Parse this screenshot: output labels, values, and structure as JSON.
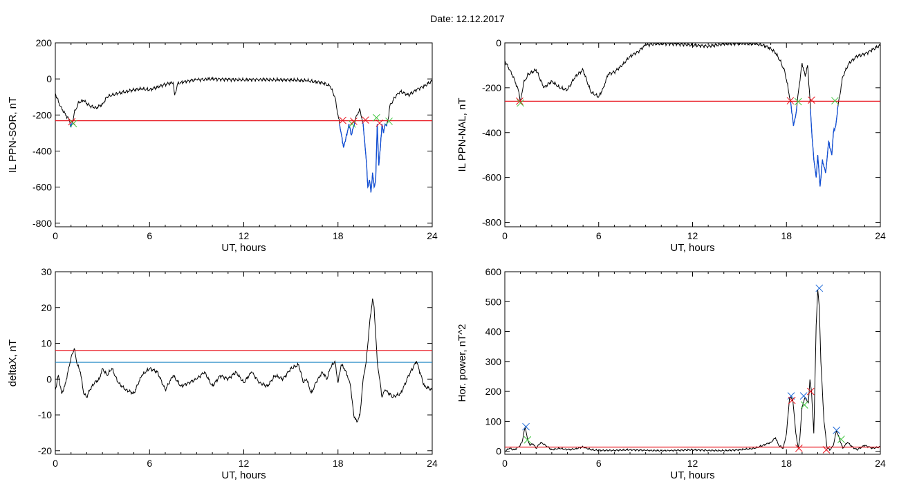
{
  "title": "Date:  12.12.2017",
  "colors": {
    "series": "#000000",
    "threshold": "#e8121c",
    "level2": "#1f86c4",
    "highlight": "#1250d8",
    "mark_red": "#e8121c",
    "mark_green": "#3cc43c",
    "mark_blue": "#1f6ad8"
  },
  "chart_data": [
    {
      "id": "sor",
      "type": "line",
      "xlabel": "UT, hours",
      "ylabel": "IL PPN-SOR, nT",
      "xlim": [
        0,
        24
      ],
      "ylim": [
        -820,
        200
      ],
      "xticks": [
        0,
        6,
        12,
        18,
        24
      ],
      "yticks": [
        200,
        0,
        -200,
        -400,
        -600,
        -800
      ],
      "threshold": -232,
      "x": [
        0,
        0.3,
        0.6,
        0.9,
        1.0,
        1.1,
        1.2,
        1.3,
        1.5,
        1.8,
        2.2,
        2.6,
        3.0,
        3.3,
        3.6,
        4.0,
        4.5,
        5.0,
        5.5,
        6.0,
        6.5,
        7.0,
        7.5,
        7.6,
        7.8,
        8.0,
        8.5,
        9.0,
        9.5,
        10.0,
        11.0,
        12.0,
        13.0,
        14.0,
        15.0,
        16.0,
        17.0,
        17.5,
        17.8,
        18.0,
        18.2,
        18.35,
        18.5,
        18.7,
        18.85,
        19.0,
        19.2,
        19.4,
        19.6,
        19.7,
        19.8,
        19.9,
        20.0,
        20.1,
        20.2,
        20.3,
        20.4,
        20.5,
        20.6,
        20.7,
        20.8,
        20.9,
        21.0,
        21.1,
        21.2,
        21.3,
        21.5,
        21.8,
        22.0,
        22.5,
        23.0,
        23.5,
        24.0
      ],
      "values": [
        -80,
        -150,
        -190,
        -230,
        -265,
        -240,
        -190,
        -170,
        -130,
        -120,
        -150,
        -160,
        -140,
        -100,
        -90,
        -80,
        -70,
        -60,
        -55,
        -60,
        -45,
        -30,
        -20,
        -90,
        -25,
        -20,
        -10,
        -5,
        -2,
        0,
        -3,
        -5,
        -3,
        -5,
        -5,
        -10,
        -20,
        -40,
        -100,
        -200,
        -300,
        -380,
        -330,
        -250,
        -310,
        -260,
        -200,
        -170,
        -250,
        -350,
        -450,
        -600,
        -560,
        -630,
        -520,
        -600,
        -560,
        -250,
        -480,
        -380,
        -250,
        -300,
        -250,
        -260,
        -220,
        -150,
        -120,
        -80,
        -70,
        -90,
        -60,
        -40,
        -10
      ],
      "markers": [
        {
          "x": 1.05,
          "y": -237,
          "color": "red"
        },
        {
          "x": 1.15,
          "y": -248,
          "color": "green"
        },
        {
          "x": 18.3,
          "y": -230,
          "color": "red"
        },
        {
          "x": 18.9,
          "y": -250,
          "color": "green"
        },
        {
          "x": 19.0,
          "y": -235,
          "color": "red"
        },
        {
          "x": 19.75,
          "y": -228,
          "color": "red"
        },
        {
          "x": 20.45,
          "y": -215,
          "color": "green"
        },
        {
          "x": 20.65,
          "y": -245,
          "color": "red"
        },
        {
          "x": 21.25,
          "y": -235,
          "color": "green"
        }
      ]
    },
    {
      "id": "nal",
      "type": "line",
      "xlabel": "UT, hours",
      "ylabel": "IL PPN-NAL, nT",
      "xlim": [
        0,
        24
      ],
      "ylim": [
        -820,
        0
      ],
      "xticks": [
        0,
        6,
        12,
        18,
        24
      ],
      "yticks": [
        0,
        -200,
        -400,
        -600,
        -800
      ],
      "threshold": -260,
      "x": [
        0,
        0.3,
        0.6,
        0.9,
        1.0,
        1.2,
        1.5,
        2.0,
        2.5,
        3.0,
        3.5,
        4.0,
        4.5,
        5.0,
        5.5,
        6.0,
        6.3,
        6.6,
        7.0,
        7.5,
        8.0,
        8.5,
        9.0,
        9.5,
        10.0,
        11.0,
        12.0,
        13.0,
        14.0,
        15.0,
        16.0,
        16.5,
        17.0,
        17.3,
        17.6,
        17.9,
        18.1,
        18.3,
        18.45,
        18.6,
        18.8,
        19.0,
        19.2,
        19.35,
        19.5,
        19.6,
        19.75,
        19.9,
        20.0,
        20.15,
        20.3,
        20.5,
        20.7,
        20.9,
        21.0,
        21.15,
        21.3,
        21.6,
        22.0,
        22.5,
        23.0,
        23.5,
        24.0
      ],
      "values": [
        -80,
        -120,
        -160,
        -220,
        -262,
        -180,
        -140,
        -120,
        -200,
        -170,
        -200,
        -210,
        -150,
        -120,
        -220,
        -240,
        -200,
        -140,
        -130,
        -100,
        -60,
        -40,
        -10,
        -5,
        -3,
        -5,
        -10,
        -15,
        -5,
        -2,
        -5,
        -10,
        -25,
        -45,
        -80,
        -130,
        -200,
        -280,
        -370,
        -320,
        -200,
        -90,
        -150,
        -100,
        -250,
        -380,
        -520,
        -600,
        -500,
        -640,
        -520,
        -580,
        -440,
        -500,
        -400,
        -370,
        -280,
        -150,
        -90,
        -60,
        -50,
        -30,
        -10
      ],
      "markers": [
        {
          "x": 0.95,
          "y": -260,
          "color": "red"
        },
        {
          "x": 1.0,
          "y": -268,
          "color": "green"
        },
        {
          "x": 18.25,
          "y": -258,
          "color": "red"
        },
        {
          "x": 18.75,
          "y": -262,
          "color": "green"
        },
        {
          "x": 19.6,
          "y": -255,
          "color": "red"
        },
        {
          "x": 21.1,
          "y": -258,
          "color": "green"
        }
      ]
    },
    {
      "id": "deltax",
      "type": "line",
      "xlabel": "UT, hours",
      "ylabel": "deltaX, nT",
      "xlim": [
        0,
        24
      ],
      "ylim": [
        -21,
        30
      ],
      "xticks": [
        0,
        6,
        12,
        18,
        24
      ],
      "yticks": [
        30,
        20,
        10,
        0,
        -10,
        -20
      ],
      "threshold": 8,
      "level2": 4.7,
      "x": [
        0,
        0.2,
        0.4,
        0.6,
        0.8,
        1.0,
        1.2,
        1.4,
        1.6,
        1.8,
        2.0,
        2.2,
        2.5,
        2.8,
        3.0,
        3.3,
        3.6,
        4.0,
        4.5,
        5.0,
        5.5,
        6.0,
        6.5,
        7.0,
        7.5,
        8.0,
        8.5,
        9.0,
        9.5,
        10.0,
        10.5,
        11.0,
        11.5,
        12.0,
        12.5,
        13.0,
        13.5,
        14.0,
        14.5,
        15.0,
        15.5,
        15.8,
        16.0,
        16.3,
        16.6,
        17.0,
        17.3,
        17.5,
        17.8,
        18.0,
        18.2,
        18.4,
        18.6,
        18.8,
        19.0,
        19.2,
        19.4,
        19.6,
        19.8,
        20.0,
        20.2,
        20.3,
        20.5,
        20.8,
        21.0,
        21.5,
        22.0,
        22.5,
        23.0,
        23.5,
        24.0
      ],
      "values": [
        -3,
        1,
        -4,
        -2,
        2,
        6,
        8.5,
        4,
        2,
        -4,
        -5,
        -3,
        -1,
        0,
        3,
        1,
        3,
        -1,
        -3,
        -4,
        1,
        3,
        2,
        -3,
        1,
        -2,
        -1,
        0,
        2,
        -2,
        1,
        0,
        2,
        -1,
        2,
        -1,
        -2,
        1,
        0,
        3,
        4,
        -1,
        0,
        -4,
        -1,
        2,
        0,
        3,
        5,
        -1,
        4,
        3,
        1,
        -2,
        -10,
        -12,
        -10,
        0,
        5,
        15,
        22.5,
        20,
        5,
        -5,
        -3,
        -5,
        -4,
        1,
        5,
        -2,
        -3
      ]
    },
    {
      "id": "power",
      "type": "line",
      "xlabel": "UT, hours",
      "ylabel": "Hor. power, nT^2",
      "xlim": [
        0,
        24
      ],
      "ylim": [
        -10,
        600
      ],
      "xticks": [
        0,
        6,
        12,
        18,
        24
      ],
      "yticks": [
        600,
        500,
        400,
        300,
        200,
        100,
        0
      ],
      "threshold": 14,
      "x": [
        0,
        0.3,
        0.6,
        0.9,
        1.1,
        1.3,
        1.45,
        1.6,
        1.8,
        2.0,
        2.3,
        2.6,
        3.0,
        3.5,
        4.0,
        4.5,
        5.0,
        5.5,
        6.0,
        7.0,
        8.0,
        9.0,
        10.0,
        11.0,
        12.0,
        13.0,
        14.0,
        15.0,
        16.0,
        16.5,
        17.0,
        17.3,
        17.5,
        17.8,
        18.0,
        18.2,
        18.4,
        18.6,
        18.75,
        18.85,
        19.0,
        19.2,
        19.4,
        19.5,
        19.6,
        19.75,
        19.9,
        20.0,
        20.1,
        20.2,
        20.4,
        20.6,
        20.8,
        21.0,
        21.2,
        21.4,
        21.6,
        21.9,
        22.2,
        22.5,
        23.0,
        23.5,
        24.0
      ],
      "values": [
        0,
        10,
        5,
        15,
        30,
        82,
        40,
        20,
        25,
        10,
        30,
        20,
        5,
        10,
        5,
        8,
        15,
        5,
        3,
        3,
        5,
        3,
        2,
        3,
        5,
        3,
        2,
        5,
        10,
        20,
        30,
        45,
        20,
        10,
        60,
        180,
        175,
        60,
        10,
        40,
        150,
        180,
        160,
        240,
        200,
        60,
        420,
        540,
        480,
        300,
        100,
        10,
        5,
        20,
        70,
        40,
        10,
        30,
        15,
        5,
        20,
        10,
        15
      ],
      "markers": [
        {
          "x": 1.35,
          "y": 82,
          "color": "blue"
        },
        {
          "x": 1.45,
          "y": 38,
          "color": "green"
        },
        {
          "x": 18.3,
          "y": 185,
          "color": "blue"
        },
        {
          "x": 18.35,
          "y": 170,
          "color": "red"
        },
        {
          "x": 18.8,
          "y": 10,
          "color": "red"
        },
        {
          "x": 19.1,
          "y": 185,
          "color": "blue"
        },
        {
          "x": 19.15,
          "y": 155,
          "color": "green"
        },
        {
          "x": 19.55,
          "y": 200,
          "color": "red"
        },
        {
          "x": 20.1,
          "y": 545,
          "color": "blue"
        },
        {
          "x": 20.55,
          "y": 5,
          "color": "red"
        },
        {
          "x": 21.2,
          "y": 70,
          "color": "blue"
        },
        {
          "x": 21.5,
          "y": 40,
          "color": "green"
        }
      ]
    }
  ]
}
